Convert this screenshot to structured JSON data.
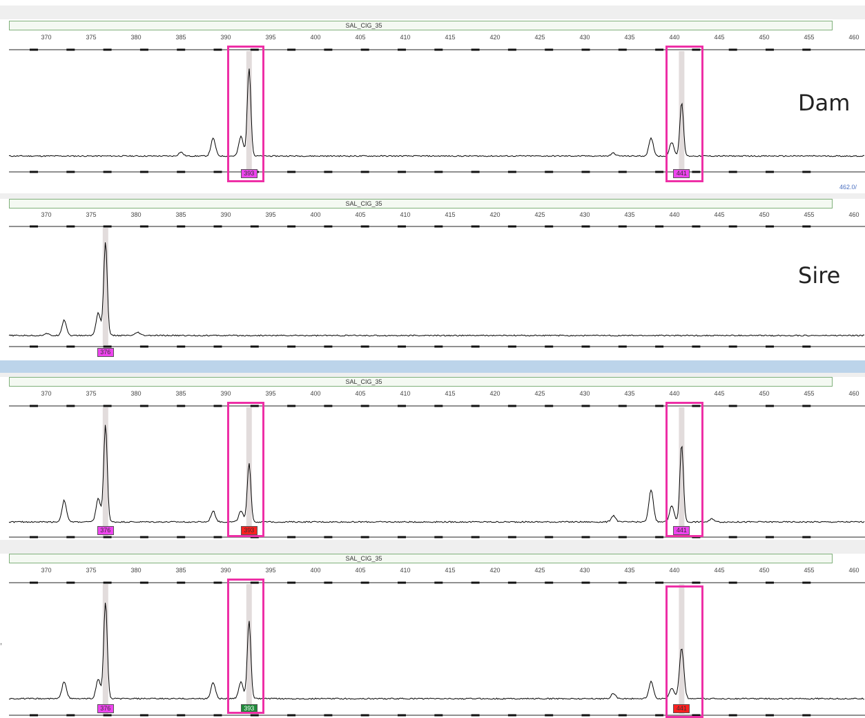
{
  "locus_name": "SAL_CIG_35",
  "x_axis_ticks": [
    "370",
    "375",
    "380",
    "385",
    "390",
    "395",
    "400",
    "405",
    "410",
    "415",
    "420",
    "425",
    "430",
    "435",
    "440",
    "445",
    "450",
    "455",
    "460"
  ],
  "side_readout": "462.0/",
  "colors": {
    "highlight": "#ee2fa6",
    "allele_magenta": "#ee44ee",
    "allele_red": "#ff2020",
    "allele_green": "#1f8a3a",
    "header_blue": "#bcd4ea"
  },
  "panels": [
    {
      "sample_label": "Dam",
      "alleles": [
        {
          "label": "393",
          "color": "magenta"
        },
        {
          "label": "441",
          "color": "magenta"
        }
      ],
      "highlighted_alleles": [
        "393",
        "441"
      ],
      "peaks_bp": [
        {
          "bp": 385.0,
          "h": 0.04
        },
        {
          "bp": 388.6,
          "h": 0.18
        },
        {
          "bp": 391.7,
          "h": 0.2
        },
        {
          "bp": 392.6,
          "h": 0.9
        },
        {
          "bp": 433.2,
          "h": 0.03
        },
        {
          "bp": 437.4,
          "h": 0.18
        },
        {
          "bp": 439.7,
          "h": 0.14
        },
        {
          "bp": 440.8,
          "h": 0.55
        }
      ]
    },
    {
      "sample_label": "Sire",
      "alleles": [
        {
          "label": "376",
          "color": "magenta"
        }
      ],
      "highlighted_alleles": [],
      "peaks_bp": [
        {
          "bp": 370.0,
          "h": 0.02
        },
        {
          "bp": 372.0,
          "h": 0.15
        },
        {
          "bp": 375.8,
          "h": 0.22
        },
        {
          "bp": 376.6,
          "h": 0.9
        },
        {
          "bp": 380.2,
          "h": 0.03
        }
      ]
    },
    {
      "sample_label": "",
      "alleles": [
        {
          "label": "376",
          "color": "magenta"
        },
        {
          "label": "393",
          "color": "red"
        },
        {
          "label": "441",
          "color": "magenta"
        }
      ],
      "highlighted_alleles": [
        "393",
        "441"
      ],
      "peaks_bp": [
        {
          "bp": 372.0,
          "h": 0.2
        },
        {
          "bp": 375.8,
          "h": 0.22
        },
        {
          "bp": 376.6,
          "h": 0.9
        },
        {
          "bp": 388.6,
          "h": 0.1
        },
        {
          "bp": 391.7,
          "h": 0.1
        },
        {
          "bp": 392.6,
          "h": 0.55
        },
        {
          "bp": 433.2,
          "h": 0.06
        },
        {
          "bp": 437.4,
          "h": 0.3
        },
        {
          "bp": 439.7,
          "h": 0.15
        },
        {
          "bp": 440.8,
          "h": 0.72
        },
        {
          "bp": 444.2,
          "h": 0.03
        }
      ]
    },
    {
      "sample_label": "",
      "alleles": [
        {
          "label": "376",
          "color": "magenta"
        },
        {
          "label": "393",
          "color": "green"
        },
        {
          "label": "441",
          "color": "red"
        }
      ],
      "highlighted_alleles": [
        "393",
        "441"
      ],
      "peaks_bp": [
        {
          "bp": 372.0,
          "h": 0.16
        },
        {
          "bp": 375.8,
          "h": 0.18
        },
        {
          "bp": 376.6,
          "h": 0.9
        },
        {
          "bp": 388.6,
          "h": 0.15
        },
        {
          "bp": 391.7,
          "h": 0.16
        },
        {
          "bp": 392.6,
          "h": 0.72
        },
        {
          "bp": 433.2,
          "h": 0.05
        },
        {
          "bp": 437.4,
          "h": 0.16
        },
        {
          "bp": 439.7,
          "h": 0.1
        },
        {
          "bp": 440.8,
          "h": 0.47
        }
      ]
    }
  ]
}
